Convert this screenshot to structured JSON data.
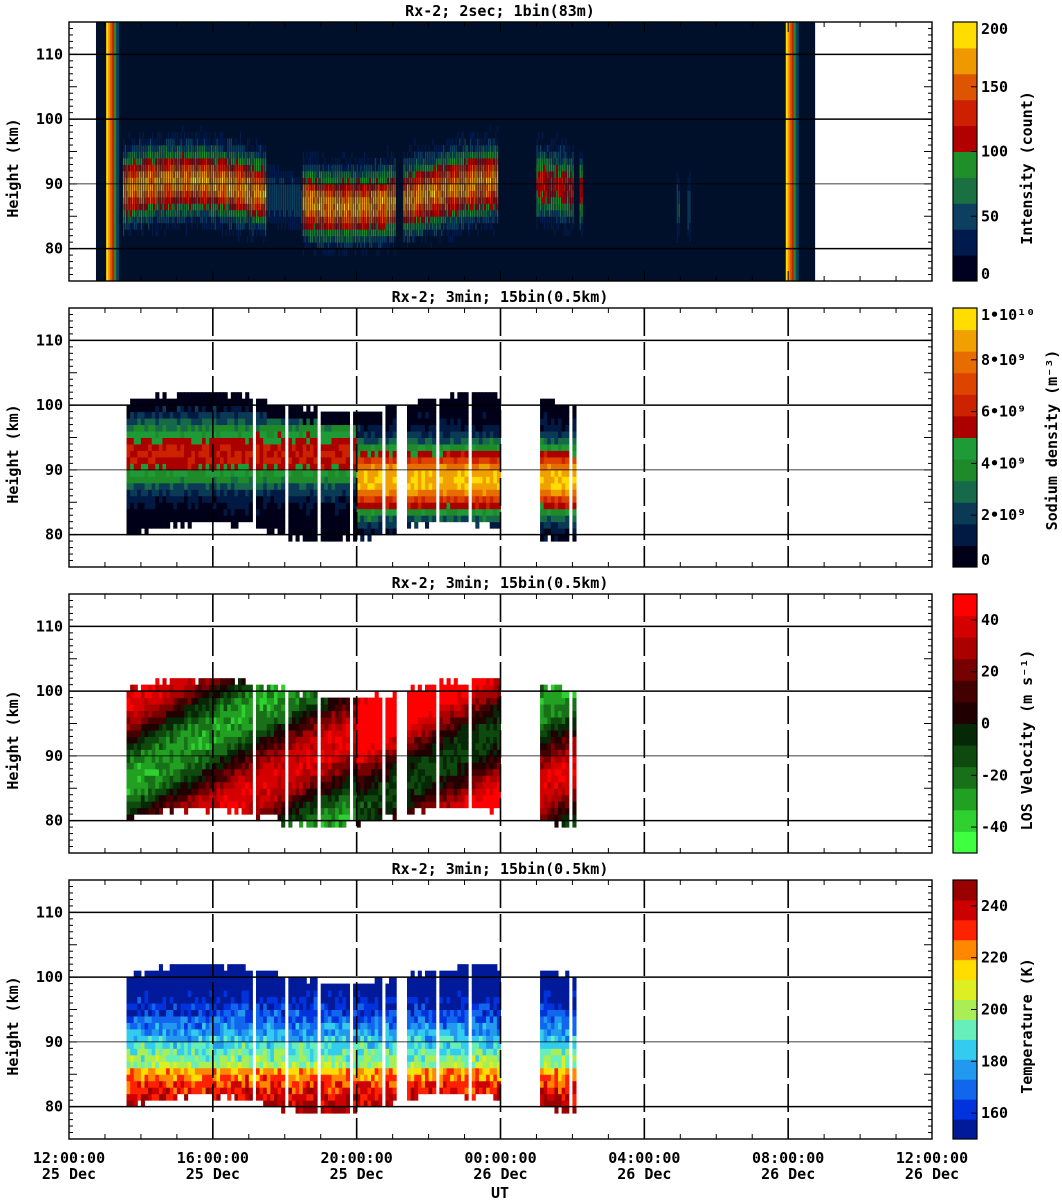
{
  "figure": {
    "xlabel": "UT",
    "x_ticks": [
      {
        "time": "12:00:00",
        "date": "25 Dec"
      },
      {
        "time": "16:00:00",
        "date": "25 Dec"
      },
      {
        "time": "20:00:00",
        "date": "25 Dec"
      },
      {
        "time": "00:00:00",
        "date": "26 Dec"
      },
      {
        "time": "04:00:00",
        "date": "26 Dec"
      },
      {
        "time": "08:00:00",
        "date": "26 Dec"
      },
      {
        "time": "12:00:00",
        "date": "26 Dec"
      }
    ]
  },
  "chart_data": [
    {
      "type": "heatmap",
      "title": "Rx-2;  2sec; 1bin(83m)",
      "ylabel": "Height (km)",
      "xlim_hours_ut": [
        12,
        36
      ],
      "ylim": [
        75,
        115
      ],
      "yticks": [
        80,
        90,
        100,
        110
      ],
      "colorbar": {
        "label": "Intensity (count)",
        "range": [
          0,
          200
        ],
        "tick_labels": [
          "0",
          "50",
          "100",
          "150",
          "200"
        ],
        "tick_values": [
          0,
          50,
          100,
          150,
          200
        ],
        "colors": [
          "#000020",
          "#001a4d",
          "#0d4060",
          "#1a7040",
          "#1f8f2a",
          "#b00000",
          "#cc2000",
          "#dd5500",
          "#ee9900",
          "#ffdd00"
        ]
      },
      "data_coverage_hours_ut": [
        12.75,
        32.75
      ],
      "layer_km": [
        80,
        100
      ],
      "peak_km": 87
    },
    {
      "type": "heatmap",
      "title": "Rx-2; 3min; 15bin(0.5km)",
      "ylabel": "Height (km)",
      "xlim_hours_ut": [
        12,
        36
      ],
      "ylim": [
        75,
        115
      ],
      "yticks": [
        80,
        90,
        100,
        110
      ],
      "colorbar": {
        "label": "Sodium density (m⁻³)",
        "range": [
          0,
          10000000000
        ],
        "tick_labels": [
          "0",
          "2•10⁹",
          "4•10⁹",
          "6•10⁹",
          "8•10⁹",
          "1•10¹⁰"
        ],
        "tick_values": [
          0,
          2000000000,
          4000000000,
          6000000000,
          8000000000,
          10000000000
        ],
        "colors": [
          "#000018",
          "#001a44",
          "#0a3a55",
          "#166a4a",
          "#1f8a2a",
          "#1e9a36",
          "#aa0000",
          "#cc2200",
          "#dd4400",
          "#e86d00",
          "#f0a000",
          "#ffdd00"
        ]
      },
      "segments_hours_ut": [
        [
          13.5,
          21.1
        ],
        [
          21.3,
          23.95
        ],
        [
          25.0,
          26.05
        ],
        [
          26.2,
          26.3
        ]
      ]
    },
    {
      "type": "heatmap",
      "title": "Rx-2; 3min; 15bin(0.5km)",
      "ylabel": "Height (km)",
      "xlim_hours_ut": [
        12,
        36
      ],
      "ylim": [
        75,
        115
      ],
      "yticks": [
        80,
        90,
        100,
        110
      ],
      "colorbar": {
        "label": "LOS Velocity (m s⁻¹)",
        "range": [
          -50,
          50
        ],
        "tick_labels": [
          "-40",
          "-20",
          "0",
          "20",
          "40"
        ],
        "tick_values": [
          -40,
          -20,
          0,
          20,
          40
        ],
        "colors": [
          "#40ff40",
          "#30d030",
          "#22a022",
          "#187018",
          "#0e4a0e",
          "#072807",
          "#200000",
          "#440000",
          "#770000",
          "#aa0000",
          "#d40000",
          "#ff0000"
        ]
      },
      "segments_hours_ut": [
        [
          13.5,
          21.1
        ],
        [
          21.3,
          23.95
        ],
        [
          25.0,
          26.05
        ],
        [
          26.2,
          26.3
        ]
      ]
    },
    {
      "type": "heatmap",
      "title": "Rx-2; 3min; 15bin(0.5km)",
      "ylabel": "Height (km)",
      "xlim_hours_ut": [
        12,
        36
      ],
      "ylim": [
        75,
        115
      ],
      "yticks": [
        80,
        90,
        100,
        110
      ],
      "colorbar": {
        "label": "Temperature (K)",
        "range": [
          150,
          250
        ],
        "tick_labels": [
          "160",
          "180",
          "200",
          "220",
          "240"
        ],
        "tick_values": [
          160,
          180,
          200,
          220,
          240
        ],
        "colors": [
          "#001a99",
          "#0033dd",
          "#1166ee",
          "#2299ee",
          "#33ccee",
          "#66eebb",
          "#aaee55",
          "#ddee22",
          "#ffdd00",
          "#ff8800",
          "#ff2200",
          "#cc0000",
          "#990000"
        ]
      },
      "segments_hours_ut": [
        [
          13.5,
          21.1
        ],
        [
          21.3,
          23.95
        ],
        [
          25.0,
          26.05
        ],
        [
          26.2,
          26.3
        ]
      ]
    }
  ]
}
